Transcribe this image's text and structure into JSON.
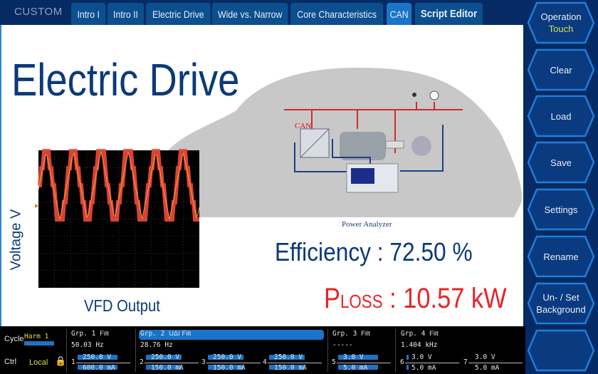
{
  "tabs": {
    "custom": "CUSTOM",
    "items": [
      {
        "label": "Intro I"
      },
      {
        "label": "Intro II"
      },
      {
        "label": "Electric Drive"
      },
      {
        "label": "Wide vs. Narrow"
      },
      {
        "label": "Core Characteristics"
      },
      {
        "label": "CAN",
        "active": true
      },
      {
        "label": "Script Editor"
      }
    ]
  },
  "main": {
    "title": "Electric Drive",
    "efficiency": "Efficiency : 72.50 %",
    "ploss_p": "P",
    "ploss_sub": "LOSS",
    "ploss_value": " : 10.57 kW",
    "voltage_label": "Voltage V",
    "vfd_label": "VFD Output",
    "can_label": "CAN",
    "power_analyzer": "Power Analyzer"
  },
  "side": {
    "buttons": [
      {
        "label": "Operation",
        "sub": "Touch"
      },
      {
        "label": "Clear"
      },
      {
        "label": "Load"
      },
      {
        "label": "Save"
      },
      {
        "label": "Settings"
      },
      {
        "label": "Rename"
      },
      {
        "label": "Un- / Set Background"
      },
      {
        "label": ""
      }
    ]
  },
  "status": {
    "cycle_label": "Cycle",
    "cycle_value": "Harm 1",
    "ctrl_label": "Ctrl",
    "ctrl_value": "Local",
    "groups": [
      {
        "name": "Grp. 1",
        "tag": "Filt",
        "freq": "50.03  Hz"
      },
      {
        "name": "Grp. 2",
        "tag": "UΔI  Filt",
        "freq": "28.76  Hz"
      },
      {
        "name": "Grp. 3",
        "tag": "Filt",
        "freq": "-----"
      },
      {
        "name": "Grp. 4",
        "tag": "Filt",
        "freq": "1.404 kHz"
      }
    ],
    "channels": [
      {
        "n": "1",
        "v": "250.0 V",
        "i": "600.0 mA"
      },
      {
        "n": "2",
        "v": "250.0 V",
        "i": "150.0 mA"
      },
      {
        "n": "3",
        "v": "250.0 V",
        "i": "150.0 mA"
      },
      {
        "n": "4",
        "v": "250.0 V",
        "i": "150.0 mA"
      },
      {
        "n": "5",
        "v": "3.0 V",
        "i": "5.0 mA"
      },
      {
        "n": "6",
        "v": "3.0 V",
        "i": "5.0 mA"
      },
      {
        "n": "7",
        "v": "3.0 V",
        "i": "5.0 mA"
      }
    ]
  },
  "colors": {
    "background": "#062a63",
    "accent": "#1a74c8",
    "loss": "#e8242a",
    "text_blue": "#0b3a78",
    "waveform": "#f04a3a"
  }
}
